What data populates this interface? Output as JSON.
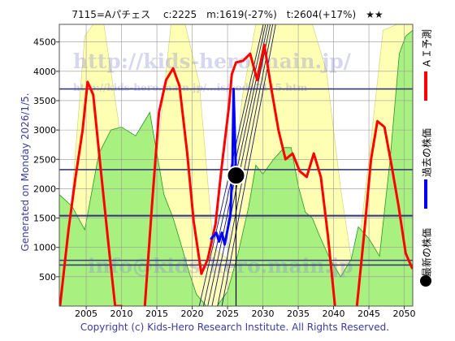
{
  "header": {
    "title": "7115=Aパチェス　 c:2225　m:1619(-27%)　t:2604(+17%)　★★"
  },
  "side_label": "Generated on Monday 2026/1/5.",
  "copyright": "Copyright (c) Kids-Hero Research Institute. All Rights Reserved.",
  "watermarks": {
    "url_large": "http://kids-hero.main.jp/",
    "url_small": "http://kids-hero.main.jp/...is/code7115.htm",
    "email": "info@kids-hero.main.jp"
  },
  "legend": {
    "ai_forecast": "ＡＩ予測",
    "past_price": "過去の株価",
    "latest_price": "最新の株価"
  },
  "colors": {
    "ai_forecast": "#ff0000",
    "past_price": "#0000ff",
    "latest_price": "#000000",
    "band_yellow": "#ffffb4",
    "band_green": "#a8f080",
    "trend_lines": "#1a1a6e",
    "grid": "#999999"
  },
  "chart_data": {
    "type": "line",
    "title": "7115=Aパチェス　 c:2225　m:1619(-27%)　t:2604(+17%)　★★",
    "xlim": [
      2001.2,
      2051.2
    ],
    "ylim": [
      0,
      4800
    ],
    "x_ticks": [
      2005,
      2010,
      2015,
      2020,
      2025,
      2030,
      2035,
      2040,
      2045,
      2050
    ],
    "y_ticks": [
      500,
      1000,
      1500,
      2000,
      2500,
      3000,
      3500,
      4000,
      4500
    ],
    "grid": true,
    "current": {
      "year": 2026.2,
      "price": 2225,
      "label": "c:2225"
    },
    "horizontal_levels": [
      3700,
      2325,
      1540,
      780,
      700
    ],
    "series": [
      {
        "name": "ＡＩ予測",
        "color": "#ff0000",
        "x": [
          2001.3,
          2002.5,
          2003.5,
          2004.5,
          2005.2,
          2006,
          2007,
          2008.2,
          2009.1,
          2010
        ],
        "y": [
          0,
          1300,
          2200,
          3000,
          3820,
          3600,
          2400,
          1000,
          0,
          0
        ]
      },
      {
        "name": "ＡＩ予測",
        "color": "#ff0000",
        "x": [
          2013.3,
          2014.3,
          2015.3,
          2016.3,
          2017.3,
          2018.2,
          2019.3,
          2020.2,
          2021.3,
          2022.2,
          2023.3,
          2024.2,
          2025.2,
          2025.6,
          2026.2,
          2027.2,
          2028.2,
          2029.2,
          2030.2,
          2031.2,
          2032.2,
          2033.2,
          2034.2,
          2035.2,
          2036.2,
          2037.2,
          2038.2,
          2039.2,
          2040.2
        ],
        "y": [
          0,
          1700,
          3300,
          3850,
          4050,
          3750,
          2600,
          1450,
          550,
          800,
          1400,
          2400,
          3400,
          3950,
          4150,
          4180,
          4300,
          3850,
          4450,
          3700,
          3000,
          2500,
          2600,
          2300,
          2200,
          2600,
          2200,
          1200,
          0
        ]
      },
      {
        "name": "ＡＩ予測",
        "color": "#ff0000",
        "x": [
          2043.3,
          2044.3,
          2045.3,
          2046.2,
          2047.2,
          2048.2,
          2049.2,
          2050.2,
          2051.1
        ],
        "y": [
          0,
          1200,
          2500,
          3150,
          3050,
          2400,
          1700,
          900,
          650
        ]
      },
      {
        "name": "過去の株価",
        "color": "#0000ff",
        "x": [
          2022.7,
          2023.4,
          2023.8,
          2024.2,
          2024.6,
          2025.0,
          2025.4,
          2025.7,
          2025.85,
          2026.0,
          2026.2
        ],
        "y": [
          1150,
          1250,
          1100,
          1250,
          1050,
          1300,
          1550,
          2400,
          3700,
          3050,
          2225
        ]
      }
    ],
    "trend_lines": [
      {
        "x": [
          2021.0,
          2031.0
        ],
        "y": [
          0,
          5300
        ]
      },
      {
        "x": [
          2021.6,
          2031.3
        ],
        "y": [
          0,
          5300
        ]
      },
      {
        "x": [
          2022.2,
          2031.6
        ],
        "y": [
          0,
          5300
        ]
      },
      {
        "x": [
          2022.8,
          2031.9
        ],
        "y": [
          0,
          5300
        ]
      },
      {
        "x": [
          2023.6,
          2032.2
        ],
        "y": [
          0,
          5300
        ]
      },
      {
        "x": [
          2024.2,
          2032.6
        ],
        "y": [
          0,
          5300
        ]
      }
    ],
    "bands": {
      "yellow_upper": {
        "x": [
          2001.2,
          2003,
          2004.8,
          2006,
          2007.5,
          2009.5,
          2011,
          2013,
          2015,
          2017,
          2019,
          2021,
          2023,
          2025,
          2027,
          2029,
          2031,
          2033,
          2035,
          2037,
          2039,
          2041,
          2043,
          2045,
          2047,
          2049,
          2051.2
        ],
        "y": [
          0,
          1900,
          4600,
          4800,
          4800,
          3200,
          1500,
          0,
          2500,
          4800,
          4800,
          3800,
          1000,
          800,
          3500,
          4800,
          4800,
          4800,
          4800,
          4800,
          4000,
          2000,
          400,
          2500,
          4700,
          4800,
          4800
        ]
      },
      "green_upper": {
        "x": [
          2001.2,
          2003,
          2004.8,
          2006.8,
          2008.5,
          2010,
          2012,
          2014,
          2015.3,
          2016,
          2017.3,
          2018.3,
          2019.5,
          2020.6,
          2022,
          2023.5,
          2025,
          2026.5,
          2028,
          2029,
          2030,
          2031.5,
          2033,
          2034,
          2035,
          2036,
          2037,
          2038,
          2039.5,
          2041,
          2042.5,
          2043.5,
          2045,
          2046.5,
          2048,
          2049.3,
          2050.2,
          2051.2
        ],
        "y": [
          1900,
          1700,
          1300,
          2600,
          3000,
          3050,
          2900,
          3300,
          2400,
          1900,
          1500,
          1100,
          600,
          200,
          0,
          0,
          250,
          900,
          1700,
          2400,
          2250,
          2500,
          2700,
          2700,
          2050,
          1600,
          1500,
          1200,
          800,
          500,
          800,
          1350,
          1150,
          850,
          2500,
          4300,
          4600,
          4700
        ]
      }
    }
  }
}
